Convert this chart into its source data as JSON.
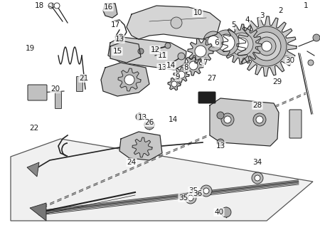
{
  "background_color": "#c8c8c8",
  "fg_color": "#1a1a1a",
  "line_color": "#222222",
  "gray_fill": "#888888",
  "light_fill": "#dddddd",
  "font_size": 7.5,
  "dpi": 100,
  "part_labels": [
    [
      "1",
      430,
      8
    ],
    [
      "2",
      395,
      15
    ],
    [
      "3",
      368,
      22
    ],
    [
      "4",
      348,
      28
    ],
    [
      "5",
      328,
      35
    ],
    [
      "6",
      305,
      60
    ],
    [
      "7",
      288,
      88
    ],
    [
      "8",
      262,
      95
    ],
    [
      "9",
      250,
      108
    ],
    [
      "10",
      278,
      18
    ],
    [
      "11",
      228,
      78
    ],
    [
      "12",
      218,
      70
    ],
    [
      "13",
      168,
      55
    ],
    [
      "13",
      228,
      95
    ],
    [
      "13",
      200,
      165
    ],
    [
      "13",
      310,
      205
    ],
    [
      "14",
      240,
      92
    ],
    [
      "14",
      243,
      168
    ],
    [
      "15",
      165,
      72
    ],
    [
      "16",
      152,
      10
    ],
    [
      "17",
      162,
      35
    ],
    [
      "18",
      55,
      8
    ],
    [
      "19",
      42,
      68
    ],
    [
      "20",
      78,
      125
    ],
    [
      "21",
      118,
      110
    ],
    [
      "22",
      48,
      180
    ],
    [
      "24",
      185,
      228
    ],
    [
      "26",
      210,
      172
    ],
    [
      "27",
      298,
      110
    ],
    [
      "28",
      362,
      148
    ],
    [
      "29",
      390,
      115
    ],
    [
      "30",
      408,
      85
    ],
    [
      "34",
      362,
      228
    ],
    [
      "35",
      272,
      268
    ],
    [
      "35",
      258,
      278
    ],
    [
      "36",
      278,
      272
    ],
    [
      "40",
      308,
      298
    ]
  ]
}
